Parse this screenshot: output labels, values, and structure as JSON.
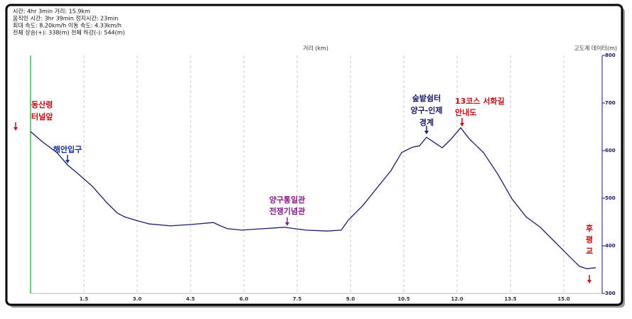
{
  "chart_data": {
    "type": "line",
    "stats": [
      "시간: 4hr 3min   거리: 15.9km",
      "움직인 시간: 3hr 39min   정지시간: 23min",
      "최대 속도: 8.20km/h   이동 속도: 4.33km/h",
      "전체 상승(+): 338(m)   전체 하강(-): 544(m)"
    ],
    "xlabel": "거리 (km)",
    "ylabel": "고도계 데이터(m)",
    "x": [
      0,
      0.34,
      0.74,
      1.04,
      1.34,
      1.74,
      2.14,
      2.44,
      2.64,
      2.94,
      3.34,
      3.94,
      4.54,
      5.14,
      5.34,
      5.54,
      5.94,
      6.54,
      7.14,
      7.74,
      8.34,
      8.74,
      8.94,
      9.34,
      9.74,
      10.14,
      10.44,
      10.74,
      10.94,
      11.14,
      11.34,
      11.58,
      11.84,
      12.1,
      12.34,
      12.74,
      13.14,
      13.54,
      13.94,
      14.34,
      14.74,
      15.14,
      15.44,
      15.64,
      15.9
    ],
    "series": [
      {
        "color": "#1c1c6b",
        "values": [
          640,
          618,
          596,
          570,
          551,
          525,
          491,
          469,
          461,
          454,
          446,
          442,
          445,
          449,
          442,
          436,
          433,
          436,
          439,
          433,
          431,
          433,
          454,
          484,
          521,
          558,
          596,
          607,
          610,
          628,
          618,
          606,
          625,
          648,
          625,
          596,
          551,
          499,
          461,
          439,
          409,
          379,
          357,
          352,
          354
        ]
      }
    ],
    "xlim": [
      0,
      16
    ],
    "ylim": [
      300,
      800
    ],
    "xticks": [
      1.5,
      {
        "value": 3,
        "label": "3.0"
      },
      4.5,
      {
        "value": 6,
        "label": "6.0"
      },
      7.5,
      {
        "value": 9,
        "label": "9.0"
      },
      10.5,
      {
        "value": 12,
        "label": "12.0"
      },
      13.5,
      {
        "value": 15,
        "label": "15.0"
      }
    ],
    "yticks": [
      300,
      400,
      500,
      600,
      700,
      800
    ],
    "grid": true,
    "annotations": [
      {
        "lines": [
          "동산령",
          "터널앞"
        ],
        "color": "#c0101a"
      },
      {
        "lines": [
          "해안입구"
        ],
        "color": "#1a2fa0"
      },
      {
        "lines": [
          "양구통일관",
          "전쟁기념관"
        ],
        "color": "#8a1a8a"
      },
      {
        "lines": [
          "숲밭쉼터",
          "양구-인제",
          "경계"
        ],
        "color": "#1a1a6e"
      },
      {
        "lines": [
          "13코스 서화길",
          "안내도"
        ],
        "color": "#c0101a"
      },
      {
        "lines": [
          "후",
          "평",
          "교"
        ],
        "color": "#c0101a"
      }
    ]
  }
}
